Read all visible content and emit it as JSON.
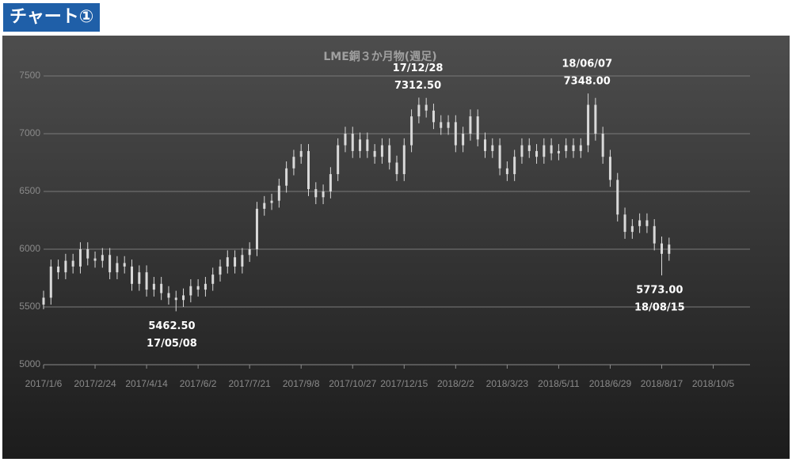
{
  "header": "チャート①",
  "chart_data": {
    "type": "candlestick",
    "title": "LME銅３か月物(週足)",
    "x": [
      "2017/1/6",
      "2017/1/13",
      "2017/1/20",
      "2017/1/27",
      "2017/2/3",
      "2017/2/10",
      "2017/2/17",
      "2017/2/24",
      "2017/3/3",
      "2017/3/10",
      "2017/3/17",
      "2017/3/24",
      "2017/3/31",
      "2017/4/7",
      "2017/4/14",
      "2017/4/21",
      "2017/4/28",
      "2017/5/5",
      "2017/5/12",
      "2017/5/19",
      "2017/5/26",
      "2017/6/2",
      "2017/6/9",
      "2017/6/16",
      "2017/6/23",
      "2017/6/30",
      "2017/7/7",
      "2017/7/14",
      "2017/7/21",
      "2017/7/28",
      "2017/8/4",
      "2017/8/11",
      "2017/8/18",
      "2017/8/25",
      "2017/9/1",
      "2017/9/8",
      "2017/9/15",
      "2017/9/22",
      "2017/9/29",
      "2017/10/6",
      "2017/10/13",
      "2017/10/20",
      "2017/10/27",
      "2017/11/3",
      "2017/11/10",
      "2017/11/17",
      "2017/11/24",
      "2017/12/1",
      "2017/12/8",
      "2017/12/15",
      "2017/12/22",
      "2017/12/29",
      "2018/1/5",
      "2018/1/12",
      "2018/1/19",
      "2018/1/26",
      "2018/2/2",
      "2018/2/9",
      "2018/2/16",
      "2018/2/23",
      "2018/3/2",
      "2018/3/9",
      "2018/3/16",
      "2018/3/23",
      "2018/3/30",
      "2018/4/6",
      "2018/4/13",
      "2018/4/20",
      "2018/4/27",
      "2018/5/4",
      "2018/5/11",
      "2018/5/18",
      "2018/5/25",
      "2018/6/1",
      "2018/6/8",
      "2018/6/15",
      "2018/6/22",
      "2018/6/29",
      "2018/7/6",
      "2018/7/13",
      "2018/7/20",
      "2018/7/27",
      "2018/8/3",
      "2018/8/10",
      "2018/8/17",
      "2018/8/24"
    ],
    "open": [
      5520,
      5580,
      5850,
      5800,
      5900,
      5850,
      6000,
      5920,
      5900,
      5950,
      5800,
      5880,
      5850,
      5700,
      5800,
      5650,
      5700,
      5620,
      5580,
      5560,
      5600,
      5680,
      5650,
      5700,
      5780,
      5850,
      5930,
      5850,
      5950,
      6000,
      6350,
      6400,
      6420,
      6550,
      6700,
      6800,
      6850,
      6520,
      6450,
      6500,
      6650,
      6900,
      7000,
      6850,
      6950,
      6850,
      6800,
      6900,
      6750,
      6650,
      6900,
      7150,
      7250,
      7200,
      7100,
      7050,
      7100,
      6900,
      7000,
      7150,
      6950,
      6850,
      6900,
      6700,
      6650,
      6800,
      6900,
      6850,
      6800,
      6900,
      6830,
      6850,
      6900,
      6850,
      6900,
      7250,
      7000,
      6800,
      6600,
      6300,
      6150,
      6200,
      6250,
      6200,
      6050,
      5960
    ],
    "high": [
      5640,
      5910,
      5910,
      5960,
      5960,
      6060,
      6060,
      5980,
      6010,
      6010,
      5940,
      5940,
      5910,
      5860,
      5860,
      5760,
      5760,
      5680,
      5640,
      5660,
      5740,
      5740,
      5760,
      5840,
      5910,
      5990,
      5990,
      6010,
      6060,
      6410,
      6460,
      6480,
      6610,
      6760,
      6860,
      6910,
      6910,
      6580,
      6560,
      6710,
      6960,
      7060,
      7060,
      7010,
      7010,
      6910,
      6960,
      6960,
      6810,
      6960,
      7210,
      7312.5,
      7310,
      7260,
      7160,
      7160,
      7160,
      7060,
      7210,
      7210,
      7010,
      6960,
      6960,
      6760,
      6860,
      6960,
      6960,
      6910,
      6960,
      6960,
      6910,
      6960,
      6960,
      6960,
      7348,
      7310,
      7060,
      6860,
      6660,
      6360,
      6260,
      6310,
      6310,
      6260,
      6110,
      6100
    ],
    "low": [
      5480,
      5520,
      5740,
      5740,
      5790,
      5790,
      5860,
      5840,
      5840,
      5740,
      5740,
      5790,
      5640,
      5640,
      5590,
      5590,
      5560,
      5520,
      5462.5,
      5500,
      5540,
      5590,
      5590,
      5640,
      5720,
      5790,
      5790,
      5790,
      5890,
      5940,
      6290,
      6340,
      6360,
      6490,
      6640,
      6740,
      6460,
      6390,
      6390,
      6440,
      6590,
      6840,
      6790,
      6790,
      6790,
      6740,
      6740,
      6690,
      6590,
      6590,
      6840,
      7090,
      7140,
      7040,
      6990,
      6990,
      6840,
      6840,
      6940,
      6890,
      6790,
      6790,
      6640,
      6590,
      6590,
      6740,
      6790,
      6740,
      6740,
      6770,
      6770,
      6790,
      6790,
      6790,
      6840,
      6940,
      6740,
      6540,
      6240,
      6090,
      6090,
      6140,
      6140,
      5990,
      5773,
      5900
    ],
    "close": [
      5580,
      5850,
      5800,
      5900,
      5850,
      6000,
      5920,
      5900,
      5950,
      5800,
      5880,
      5850,
      5700,
      5800,
      5650,
      5700,
      5620,
      5580,
      5560,
      5600,
      5680,
      5650,
      5700,
      5780,
      5850,
      5930,
      5850,
      5950,
      6000,
      6350,
      6400,
      6420,
      6550,
      6700,
      6800,
      6850,
      6520,
      6450,
      6500,
      6650,
      6900,
      7000,
      6850,
      6950,
      6850,
      6800,
      6900,
      6750,
      6650,
      6900,
      7150,
      7250,
      7200,
      7100,
      7050,
      7100,
      6900,
      7000,
      7150,
      6950,
      6850,
      6900,
      6700,
      6650,
      6800,
      6900,
      6850,
      6800,
      6900,
      6830,
      6850,
      6900,
      6850,
      6900,
      7250,
      7000,
      6800,
      6600,
      6300,
      6150,
      6200,
      6250,
      6200,
      6050,
      5960,
      6040
    ],
    "color": "#d9d9d9",
    "xlim": [
      "2017/1/6",
      "2018/11/9"
    ],
    "xticks": [
      "2017/1/6",
      "2017/2/24",
      "2017/4/14",
      "2017/6/2",
      "2017/7/21",
      "2017/9/8",
      "2017/10/27",
      "2017/12/15",
      "2018/2/2",
      "2018/3/23",
      "2018/5/11",
      "2018/6/29",
      "2018/8/17",
      "2018/10/5"
    ],
    "ylim": [
      5000,
      7500
    ],
    "yticks": [
      5000,
      5500,
      6000,
      6500,
      7000,
      7500
    ],
    "grid": true,
    "annotations": [
      {
        "value": 5462.5,
        "label": "5462.50",
        "date": "17/05/08"
      },
      {
        "value": 7312.5,
        "label": "7312.50",
        "date": "17/12/28"
      },
      {
        "value": 7348,
        "label": "7348.00",
        "date": "18/06/07"
      },
      {
        "value": 5773,
        "label": "5773.00",
        "date": "18/08/15"
      }
    ]
  }
}
